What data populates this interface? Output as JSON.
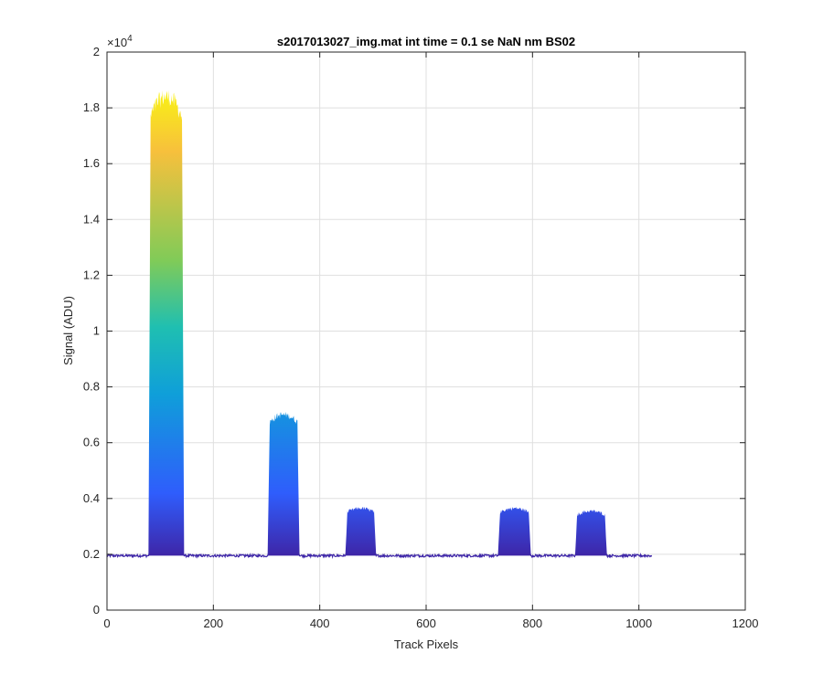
{
  "chart_data": {
    "type": "area",
    "title": "s2017013027_img.mat int time = 0.1 se  NaN nm BS02",
    "xlabel": "Track Pixels",
    "ylabel": "Signal (ADU)",
    "xlim": [
      0,
      1200
    ],
    "ylim": [
      0,
      20000
    ],
    "x_ticks": [
      "0",
      "200",
      "400",
      "600",
      "800",
      "1000",
      "1200"
    ],
    "y_ticks": [
      "0",
      "0.2",
      "0.4",
      "0.6",
      "0.8",
      "1",
      "1.2",
      "1.4",
      "1.6",
      "1.8",
      "2"
    ],
    "y_exponent_label": "×10",
    "y_exponent_power": "4",
    "grid": true,
    "x_data_end": 1024,
    "baseline": 1950,
    "peaks": [
      {
        "x_start": 78,
        "x_end": 145,
        "level": 18400
      },
      {
        "x_start": 302,
        "x_end": 362,
        "level": 7000
      },
      {
        "x_start": 448,
        "x_end": 506,
        "level": 3650
      },
      {
        "x_start": 735,
        "x_end": 797,
        "level": 3650
      },
      {
        "x_start": 880,
        "x_end": 940,
        "level": 3550
      }
    ],
    "colormap": [
      "#3e26a8",
      "#2f5dfc",
      "#0f9fd9",
      "#1fbfb1",
      "#80cb58",
      "#f7c03c",
      "#f9fb0e"
    ]
  }
}
